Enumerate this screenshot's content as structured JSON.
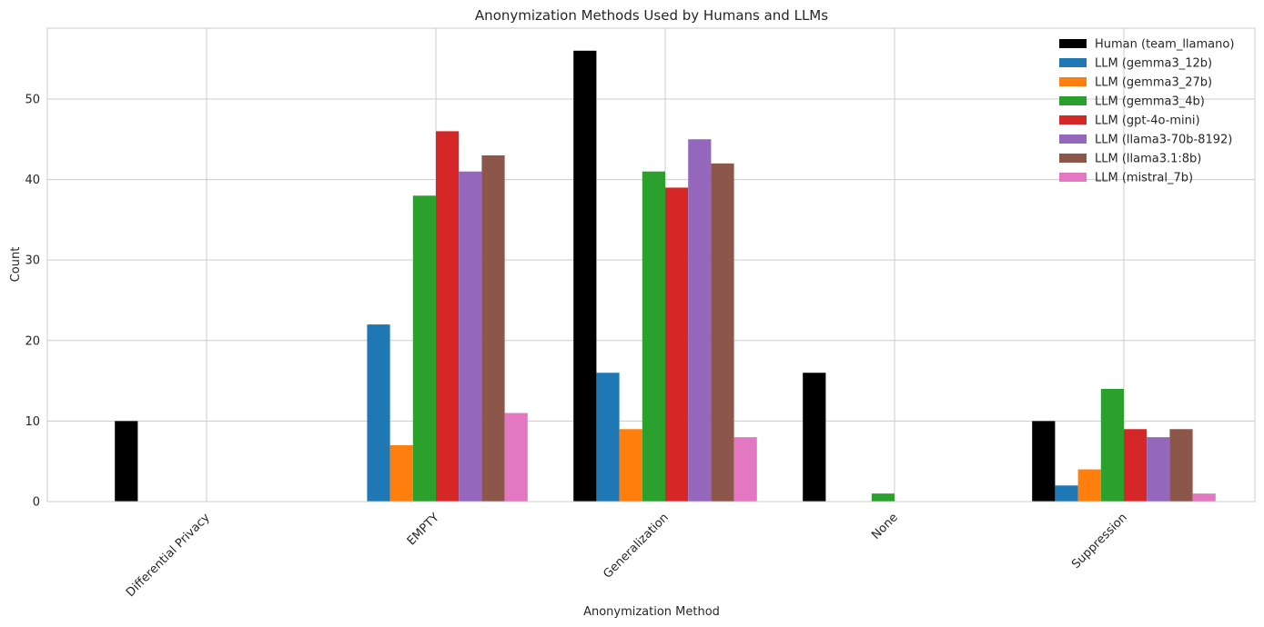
{
  "chart_data": {
    "type": "bar",
    "title": "Anonymization Methods Used by Humans and LLMs",
    "xlabel": "Anonymization Method",
    "ylabel": "Count",
    "categories": [
      "Differential Privacy",
      "EMPTY",
      "Generalization",
      "None",
      "Suppression"
    ],
    "ylim": [
      0,
      58.8
    ],
    "yticks": [
      0,
      10,
      20,
      30,
      40,
      50
    ],
    "grid": true,
    "legend_position": "top-right",
    "series": [
      {
        "name": "Human (team_llamano)",
        "color": "#000000",
        "values": [
          10,
          0,
          56,
          16,
          10
        ]
      },
      {
        "name": "LLM (gemma3_12b)",
        "color": "#1f77b4",
        "values": [
          0,
          22,
          16,
          0,
          2
        ]
      },
      {
        "name": "LLM (gemma3_27b)",
        "color": "#ff7f0e",
        "values": [
          0,
          7,
          9,
          0,
          4
        ]
      },
      {
        "name": "LLM (gemma3_4b)",
        "color": "#2ca02c",
        "values": [
          0,
          38,
          41,
          1,
          14
        ]
      },
      {
        "name": "LLM (gpt-4o-mini)",
        "color": "#d62728",
        "values": [
          0,
          46,
          39,
          0,
          9
        ]
      },
      {
        "name": "LLM (llama3-70b-8192)",
        "color": "#9467bd",
        "values": [
          0,
          41,
          45,
          0,
          8
        ]
      },
      {
        "name": "LLM (llama3.1:8b)",
        "color": "#8c564b",
        "values": [
          0,
          43,
          42,
          0,
          9
        ]
      },
      {
        "name": "LLM (mistral_7b)",
        "color": "#e377c2",
        "values": [
          0,
          11,
          8,
          0,
          1
        ]
      }
    ]
  }
}
